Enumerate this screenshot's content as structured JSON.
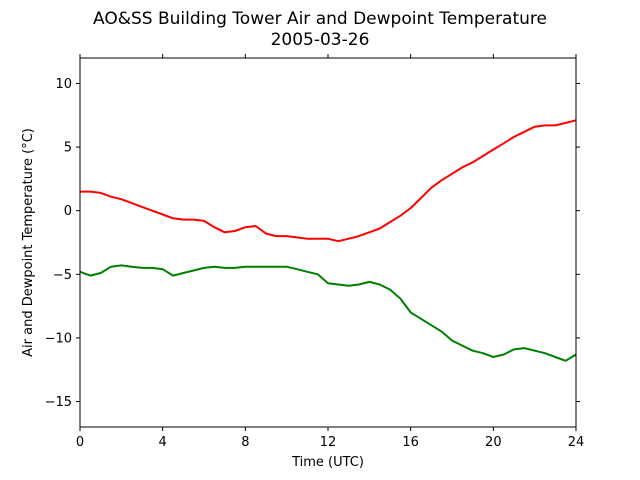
{
  "chart_data": {
    "type": "line",
    "title": "AO&SS Building Tower Air and Dewpoint Temperature",
    "subtitle": "2005-03-26",
    "xlabel": "Time (UTC)",
    "ylabel": "Air and Dewpoint Temperature (°C)",
    "xlim": [
      0,
      24
    ],
    "ylim": [
      -17,
      12
    ],
    "x_ticks": [
      0,
      4,
      8,
      12,
      16,
      20,
      24
    ],
    "y_ticks": [
      -15,
      -10,
      -5,
      0,
      5,
      10
    ],
    "grid": false,
    "legend": "none",
    "series": [
      {
        "color": "#ff0000",
        "x": [
          0,
          0.5,
          1,
          1.5,
          2,
          2.5,
          3,
          3.5,
          4,
          4.5,
          5,
          5.5,
          6,
          6.5,
          7,
          7.5,
          8,
          8.5,
          9,
          9.5,
          10,
          10.5,
          11,
          11.5,
          12,
          12.5,
          13,
          13.5,
          14,
          14.5,
          15,
          15.5,
          16,
          16.5,
          17,
          17.5,
          18,
          18.5,
          19,
          19.5,
          20,
          20.5,
          21,
          21.5,
          22,
          22.5,
          23,
          23.5,
          24
        ],
        "values": [
          1.5,
          1.5,
          1.4,
          1.1,
          0.9,
          0.6,
          0.3,
          0.0,
          -0.3,
          -0.6,
          -0.7,
          -0.7,
          -0.8,
          -1.3,
          -1.7,
          -1.6,
          -1.3,
          -1.2,
          -1.8,
          -2.0,
          -2.0,
          -2.1,
          -2.2,
          -2.2,
          -2.2,
          -2.4,
          -2.2,
          -2.0,
          -1.7,
          -1.4,
          -0.9,
          -0.4,
          0.2,
          1.0,
          1.8,
          2.4,
          2.9,
          3.4,
          3.8,
          4.3,
          4.8,
          5.3,
          5.8,
          6.2,
          6.6,
          6.7,
          6.7,
          6.9,
          7.1
        ]
      },
      {
        "color": "#008000",
        "x": [
          0,
          0.5,
          1,
          1.5,
          2,
          2.5,
          3,
          3.5,
          4,
          4.5,
          5,
          5.5,
          6,
          6.5,
          7,
          7.5,
          8,
          8.5,
          9,
          9.5,
          10,
          10.5,
          11,
          11.5,
          12,
          12.5,
          13,
          13.5,
          14,
          14.5,
          15,
          15.5,
          16,
          16.5,
          17,
          17.5,
          18,
          18.5,
          19,
          19.5,
          20,
          20.5,
          21,
          21.5,
          22,
          22.5,
          23,
          23.5,
          24
        ],
        "values": [
          -4.8,
          -5.1,
          -4.9,
          -4.4,
          -4.3,
          -4.4,
          -4.5,
          -4.5,
          -4.6,
          -5.1,
          -4.9,
          -4.7,
          -4.5,
          -4.4,
          -4.5,
          -4.5,
          -4.4,
          -4.4,
          -4.4,
          -4.4,
          -4.4,
          -4.6,
          -4.8,
          -5.0,
          -5.7,
          -5.8,
          -5.9,
          -5.8,
          -5.6,
          -5.8,
          -6.2,
          -6.9,
          -8.0,
          -8.5,
          -9.0,
          -9.5,
          -10.2,
          -10.6,
          -11.0,
          -11.2,
          -11.5,
          -11.3,
          -10.9,
          -10.8,
          -11.0,
          -11.2,
          -11.5,
          -11.8,
          -11.3
        ]
      }
    ]
  }
}
